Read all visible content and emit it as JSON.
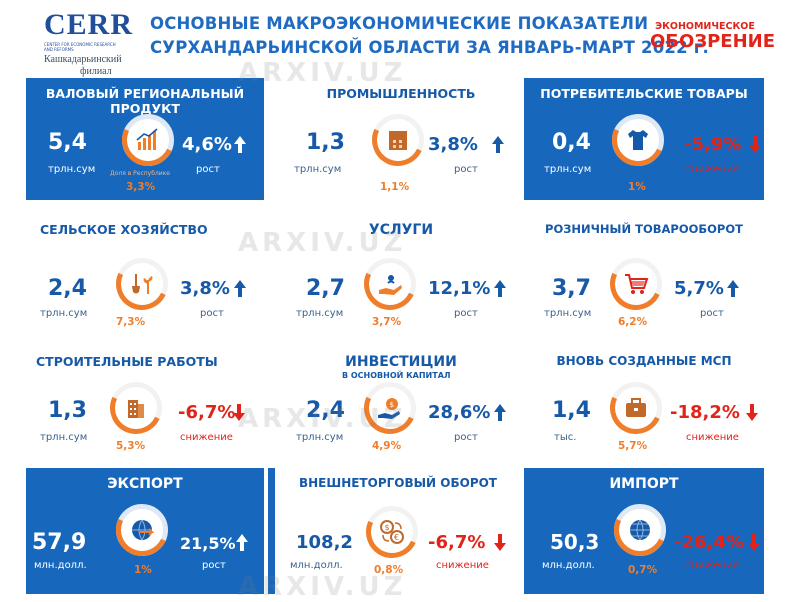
{
  "logo": {
    "name": "CERR",
    "tagline": "CENTER FOR ECONOMIC RESEARCH AND REFORMS",
    "branch_line1": "Кашкадарьинский",
    "branch_line2": "филиал"
  },
  "header": {
    "line1": "ОСНОВНЫЕ МАКРОЭКОНОМИЧЕСКИЕ ПОКАЗАТЕЛИ",
    "line2": "СУРХАНДАРЬИНСКОЙ ОБЛАСТИ ЗА ЯНВАРЬ-МАРТ 2022 г."
  },
  "badge": {
    "line1": "ЭКОНОМИЧЕСКОЕ",
    "line2": "ОБОЗРЕНИЕ"
  },
  "watermark": "ARXIV.UZ",
  "cards": {
    "grp": {
      "title": "ВАЛОВЫЙ РЕГИОНАЛЬНЫЙ ПРОДУКТ",
      "value": "5,4",
      "unit": "трлн.сум",
      "pct": "4,6%",
      "pct_label": "рост",
      "icon_caption": "Доля в Республике",
      "share": "3,3%",
      "icon": "growth-chart-icon"
    },
    "industry": {
      "title": "ПРОМЫШЛЕННОСТЬ",
      "value": "1,3",
      "unit": "трлн.сум",
      "pct": "3,8%",
      "pct_label": "рост",
      "share": "1,1%",
      "icon": "factory-icon"
    },
    "consumer": {
      "title": "ПОТРЕБИТЕЛЬСКИЕ ТОВАРЫ",
      "value": "0,4",
      "unit": "трлн.сум",
      "pct": "-5,9%",
      "pct_label": "снижение",
      "share": "1%",
      "icon": "tshirt-icon"
    },
    "agri": {
      "title": "СЕЛЬСКОЕ ХОЗЯЙСТВО",
      "value": "2,4",
      "unit": "трлн.сум",
      "pct": "3,8%",
      "pct_label": "рост",
      "share": "7,3%",
      "icon": "shovel-plant-icon"
    },
    "services": {
      "title": "УСЛУГИ",
      "value": "2,7",
      "unit": "трлн.сум",
      "pct": "12,1%",
      "pct_label": "рост",
      "share": "3,7%",
      "icon": "hand-service-icon"
    },
    "retail": {
      "title": "РОЗНИЧНЫЙ ТОВАРООБОРОТ",
      "value": "3,7",
      "unit": "трлн.сум",
      "pct": "5,7%",
      "pct_label": "рост",
      "share": "6,2%",
      "icon": "shopping-cart-icon"
    },
    "construction": {
      "title": "СТРОИТЕЛЬНЫЕ РАБОТЫ",
      "value": "1,3",
      "unit": "трлн.сум",
      "pct": "-6,7%",
      "pct_label": "снижение",
      "share": "5,3%",
      "icon": "building-icon"
    },
    "investment": {
      "title": "ИНВЕСТИЦИИ",
      "subtitle": "В ОСНОВНОЙ КАПИТАЛ",
      "value": "2,4",
      "unit": "трлн.сум",
      "pct": "28,6%",
      "pct_label": "рост",
      "share": "4,9%",
      "icon": "money-bag-hand-icon"
    },
    "sme": {
      "title": "ВНОВЬ СОЗДАННЫЕ МСП",
      "value": "1,4",
      "unit": "тыс.",
      "pct": "-18,2%",
      "pct_label": "снижение",
      "share": "5,7%",
      "icon": "briefcase-icon"
    },
    "export": {
      "title": "ЭКСПОРТ",
      "value": "57,9",
      "unit": "млн.долл.",
      "pct": "21,5%",
      "pct_label": "рост",
      "share": "1%",
      "icon": "globe-arrow-icon"
    },
    "trade": {
      "title": "ВНЕШНЕТОРГОВЫЙ ОБОРОТ",
      "value": "108,2",
      "unit": "млн.долл.",
      "pct": "-6,7%",
      "pct_label": "снижение",
      "share": "0,8%",
      "icon": "currency-exchange-icon"
    },
    "import": {
      "title": "ИМПОРТ",
      "value": "50,3",
      "unit": "млн.долл.",
      "pct": "-26,4%",
      "pct_label": "снижение",
      "share": "0,7%",
      "icon": "globe-icon"
    }
  },
  "colors": {
    "blue": "#1768bd",
    "dark_blue": "#1559a8",
    "orange": "#f07d2a",
    "red": "#e2231a"
  }
}
